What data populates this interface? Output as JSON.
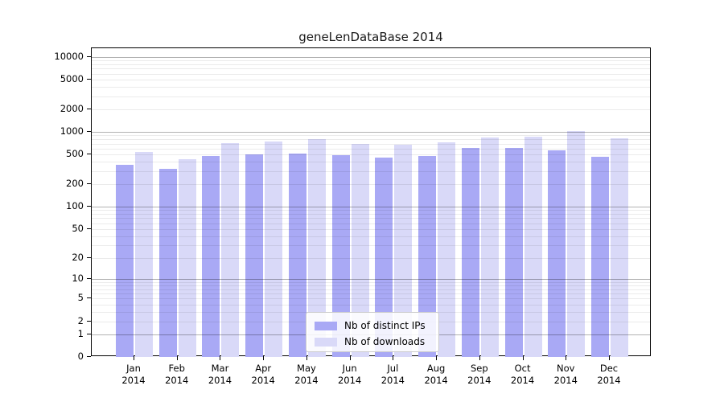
{
  "title": "geneLenDataBase 2014",
  "colors": {
    "ips_bar": "#a9a9f5",
    "downloads_bar": "#d9d9f8",
    "grid_major": "rgba(0,0,0,0.30)",
    "grid_minor": "rgba(0,0,0,0.08)",
    "axis": "#000000",
    "background": "#ffffff"
  },
  "chart_data": {
    "type": "bar",
    "title": "geneLenDataBase 2014",
    "categories": [
      "Jan",
      "Feb",
      "Mar",
      "Apr",
      "May",
      "Jun",
      "Jul",
      "Aug",
      "Sep",
      "Oct",
      "Nov",
      "Dec"
    ],
    "category_year": "2014",
    "series": [
      {
        "name": "Nb of distinct IPs",
        "color": "#a9a9f5",
        "values": [
          365,
          325,
          480,
          505,
          515,
          490,
          455,
          480,
          615,
          610,
          570,
          465
        ]
      },
      {
        "name": "Nb of downloads",
        "color": "#d9d9f8",
        "values": [
          545,
          435,
          710,
          750,
          805,
          695,
          680,
          730,
          845,
          865,
          1020,
          825
        ]
      }
    ],
    "yscale": "log10(1+v)",
    "ytick_values": [
      0,
      1,
      2,
      5,
      10,
      20,
      50,
      100,
      200,
      500,
      1000,
      2000,
      5000,
      10000
    ],
    "ytick_labels": [
      "0",
      "1",
      "2",
      "5",
      "10",
      "20",
      "50",
      "100",
      "200",
      "500",
      "1000",
      "2000",
      "5000",
      "10000"
    ],
    "grid_major_at": [
      1,
      10,
      100,
      1000,
      10000
    ],
    "grid_minor_multiples": [
      2,
      3,
      4,
      5,
      6,
      7,
      8,
      9
    ],
    "grid_minor_decades": [
      1,
      10,
      100,
      1000
    ],
    "ylim": [
      0,
      13000
    ],
    "grid": true,
    "legend_position": "lower center"
  },
  "legend": {
    "items": [
      {
        "label": "Nb of distinct IPs",
        "color": "#a9a9f5"
      },
      {
        "label": "Nb of downloads",
        "color": "#d9d9f8"
      }
    ]
  }
}
